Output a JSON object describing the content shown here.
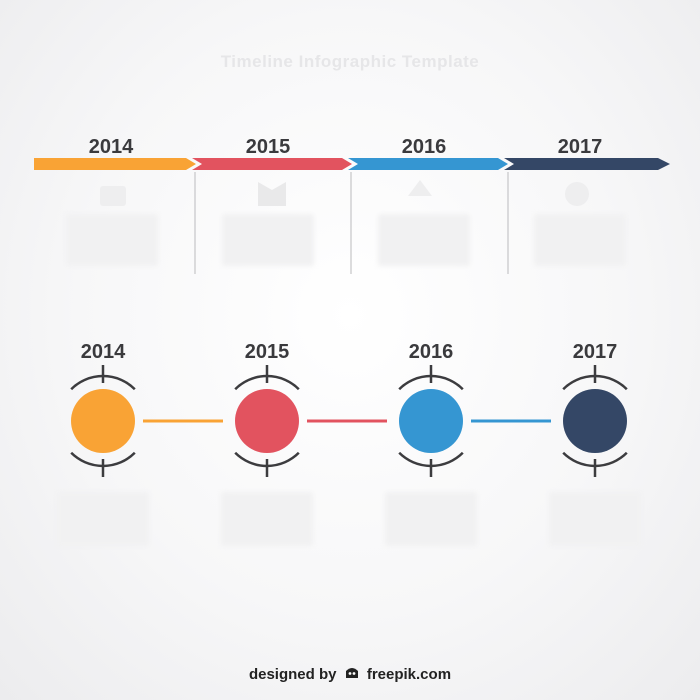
{
  "title": "Timeline Infographic Template",
  "timeline_top": {
    "items": [
      {
        "year": "2014",
        "color": "#f9a335"
      },
      {
        "year": "2015",
        "color": "#e2535f"
      },
      {
        "year": "2016",
        "color": "#3596d2"
      },
      {
        "year": "2017",
        "color": "#344766"
      }
    ]
  },
  "timeline_bottom": {
    "items": [
      {
        "year": "2014",
        "color": "#f9a335"
      },
      {
        "year": "2015",
        "color": "#e2535f"
      },
      {
        "year": "2016",
        "color": "#3596d2"
      },
      {
        "year": "2017",
        "color": "#344766"
      }
    ]
  },
  "credit": {
    "prefix": "designed by",
    "brand": "freepik.com"
  }
}
